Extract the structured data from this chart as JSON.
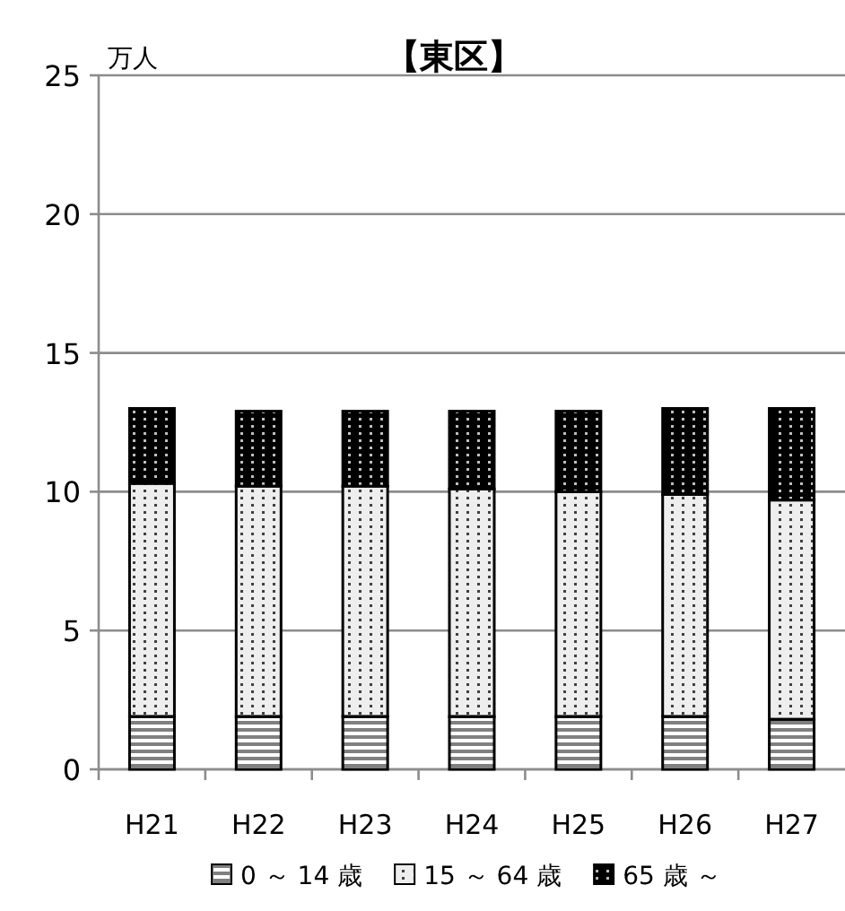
{
  "chart_data": {
    "type": "bar",
    "title": "【東区】",
    "ylabel": "万人",
    "stacked": true,
    "categories": [
      "H21",
      "H22",
      "H23",
      "H24",
      "H25",
      "H26",
      "H27"
    ],
    "series": [
      {
        "name": "0 ～ 14 歳",
        "color": "#808080",
        "values": [
          1.9,
          1.9,
          1.9,
          1.9,
          1.9,
          1.9,
          1.8
        ]
      },
      {
        "name": "15 ～ 64 歳",
        "color": "#eeeeee",
        "values": [
          8.4,
          8.3,
          8.3,
          8.2,
          8.1,
          8.0,
          7.9
        ]
      },
      {
        "name": "65 歳 ～",
        "color": "#000000",
        "values": [
          2.7,
          2.7,
          2.7,
          2.8,
          2.9,
          3.1,
          3.3
        ]
      }
    ],
    "ylim": [
      0,
      25
    ],
    "yticks": [
      0,
      5,
      10,
      15,
      20,
      25
    ],
    "grid": "y",
    "legend": "bottom"
  }
}
